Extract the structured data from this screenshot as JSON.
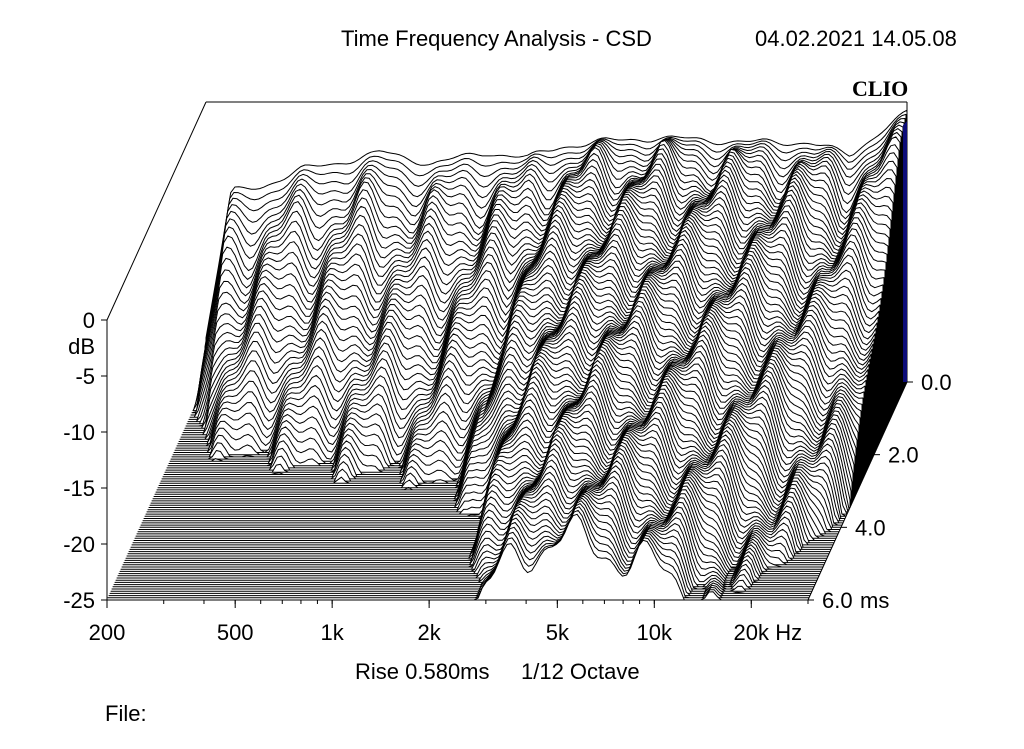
{
  "header": {
    "title": "Time Frequency Analysis - CSD",
    "datetime": "04.02.2021 14.05.08",
    "logo": "CLIO"
  },
  "info": {
    "rise": "Rise 0.580ms",
    "octave": "1/12 Octave",
    "file": "File:"
  },
  "colors": {
    "line": "#000000",
    "fill": "#ffffff",
    "accent": "#0c0c78"
  },
  "chart_data": {
    "type": "area",
    "chart_subtype": "cumulative-spectral-decay-waterfall",
    "x_axis": {
      "ticks": [
        "200",
        "500",
        "1k",
        "2k",
        "5k",
        "10k",
        "20k"
      ],
      "tick_values": [
        200,
        500,
        1000,
        2000,
        5000,
        10000,
        20000
      ],
      "unit": "Hz",
      "scale": "log",
      "range": [
        200,
        30000
      ]
    },
    "y_axis": {
      "ticks": [
        "0",
        "-5",
        "-10",
        "-15",
        "-20",
        "-25"
      ],
      "tick_values": [
        0,
        -5,
        -10,
        -15,
        -20,
        -25
      ],
      "unit": "dB",
      "range": [
        -25,
        0
      ]
    },
    "z_axis": {
      "ticks": [
        "0.0",
        "2.0",
        "4.0",
        "6.0"
      ],
      "tick_values": [
        0,
        2,
        4,
        6
      ],
      "unit": "ms",
      "range": [
        0,
        6
      ]
    },
    "slice_count": 100,
    "level_points": [
      [
        200,
        -21
      ],
      [
        240,
        -8
      ],
      [
        300,
        -7.5
      ],
      [
        400,
        -6
      ],
      [
        500,
        -5.5
      ],
      [
        700,
        -4.5
      ],
      [
        1000,
        -5.5
      ],
      [
        1500,
        -4.5
      ],
      [
        2000,
        -5
      ],
      [
        2500,
        -4
      ],
      [
        3500,
        -3.5
      ],
      [
        5000,
        -3.2
      ],
      [
        7000,
        -3.4
      ],
      [
        10000,
        -3.6
      ],
      [
        15000,
        -3.6
      ],
      [
        20000,
        -4.8
      ],
      [
        25000,
        -2.5
      ],
      [
        30000,
        -1.0
      ]
    ],
    "decay_points": [
      [
        200,
        2.0
      ],
      [
        300,
        2.3
      ],
      [
        500,
        2.4
      ],
      [
        700,
        2.5
      ],
      [
        1000,
        2.6
      ],
      [
        1500,
        2.8
      ],
      [
        2000,
        3.5
      ],
      [
        3000,
        6.0
      ],
      [
        5000,
        7.5
      ],
      [
        7000,
        7.0
      ],
      [
        10000,
        6.5
      ],
      [
        15000,
        5.5
      ],
      [
        20000,
        5.0
      ],
      [
        25000,
        4.0
      ],
      [
        30000,
        3.0
      ]
    ]
  }
}
